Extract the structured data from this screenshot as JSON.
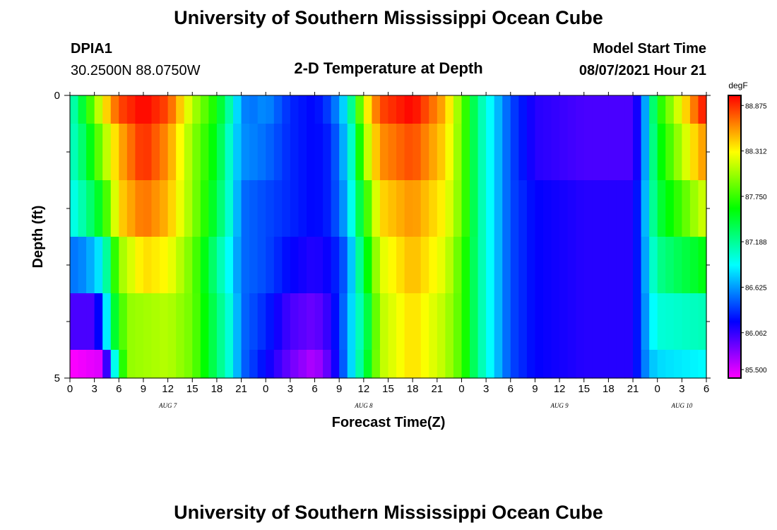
{
  "header": {
    "title": "University of Southern Mississippi Ocean Cube",
    "station_id": "DPIA1",
    "station_location": "30.2500N  88.0750W",
    "model_start_label": "Model Start Time",
    "model_start_value": "08/07/2021 Hour 21"
  },
  "footer": {
    "title": "University of Southern Mississippi Ocean Cube"
  },
  "chart_data": {
    "type": "heatmap",
    "title": "2-D Temperature at Depth",
    "xlabel": "Forecast Time(Z)",
    "ylabel": "Depth (ft)",
    "x_start_hour": 0,
    "x_end_hour": 78,
    "x_step_hours": 1,
    "x_tick_labels": [
      "0",
      "3",
      "6",
      "9",
      "12",
      "15",
      "18",
      "21",
      "0",
      "3",
      "6",
      "9",
      "12",
      "15",
      "18",
      "21",
      "0",
      "3",
      "6",
      "9",
      "12",
      "15",
      "18",
      "21",
      "0",
      "3",
      "6"
    ],
    "x_tick_hours": [
      0,
      3,
      6,
      9,
      12,
      15,
      18,
      21,
      24,
      27,
      30,
      33,
      36,
      39,
      42,
      45,
      48,
      51,
      54,
      57,
      60,
      63,
      66,
      69,
      72,
      75,
      78
    ],
    "date_labels": [
      {
        "label": "AUG 7",
        "hour": 12
      },
      {
        "label": "AUG 8",
        "hour": 36
      },
      {
        "label": "AUG 9",
        "hour": 60
      },
      {
        "label": "AUG 10",
        "hour": 75
      }
    ],
    "y_range": [
      0,
      5
    ],
    "y_tick_labels": [
      {
        "label": "0",
        "depth": 0
      },
      {
        "label": "5",
        "depth": 5
      }
    ],
    "y_minor_ticks": [
      1,
      2,
      3,
      4
    ],
    "depth_layers": [
      0.5,
      1.5,
      2.5,
      3.5,
      4.5
    ],
    "colorbar": {
      "unit": "degF",
      "min": 85.5,
      "max": 89.0,
      "tick_values": [
        85.5,
        86.062,
        86.625,
        87.188,
        87.75,
        88.312,
        88.875
      ],
      "tick_labels": [
        "85.500",
        "86.062",
        "86.625",
        "87.188",
        "87.750",
        "88.312",
        "88.875"
      ]
    },
    "keypoints": [
      [
        [
          0,
          87.0
        ],
        [
          2,
          87.6
        ],
        [
          4,
          88.3
        ],
        [
          6,
          88.8
        ],
        [
          9,
          89.0
        ],
        [
          12,
          88.8
        ],
        [
          15,
          88.1
        ],
        [
          18,
          87.6
        ],
        [
          20,
          87.0
        ],
        [
          21,
          86.6
        ],
        [
          22,
          86.5
        ],
        [
          24,
          86.6
        ],
        [
          27,
          86.3
        ],
        [
          30,
          86.2
        ],
        [
          32,
          86.4
        ],
        [
          34,
          86.9
        ],
        [
          35,
          87.5
        ],
        [
          36,
          88.2
        ],
        [
          38,
          88.8
        ],
        [
          42,
          89.0
        ],
        [
          46,
          88.5
        ],
        [
          48,
          87.9
        ],
        [
          50,
          87.2
        ],
        [
          52,
          86.8
        ],
        [
          54,
          86.4
        ],
        [
          57,
          86.1
        ],
        [
          63,
          86.0
        ],
        [
          69,
          86.0
        ],
        [
          70,
          86.3
        ],
        [
          71,
          87.0
        ],
        [
          72,
          87.6
        ],
        [
          75,
          88.3
        ],
        [
          77,
          88.8
        ],
        [
          78,
          89.0
        ]
      ],
      [
        [
          0,
          87.0
        ],
        [
          2,
          87.4
        ],
        [
          4,
          88.0
        ],
        [
          6,
          88.5
        ],
        [
          9,
          88.9
        ],
        [
          12,
          88.6
        ],
        [
          15,
          88.0
        ],
        [
          18,
          87.5
        ],
        [
          20,
          86.9
        ],
        [
          21,
          86.6
        ],
        [
          24,
          86.5
        ],
        [
          27,
          86.3
        ],
        [
          30,
          86.2
        ],
        [
          32,
          86.3
        ],
        [
          34,
          86.8
        ],
        [
          35,
          87.3
        ],
        [
          36,
          88.0
        ],
        [
          38,
          88.6
        ],
        [
          42,
          88.8
        ],
        [
          46,
          88.4
        ],
        [
          48,
          87.9
        ],
        [
          50,
          87.2
        ],
        [
          52,
          86.8
        ],
        [
          54,
          86.4
        ],
        [
          57,
          86.1
        ],
        [
          63,
          86.0
        ],
        [
          69,
          86.0
        ],
        [
          70,
          86.3
        ],
        [
          71,
          87.0
        ],
        [
          72,
          87.5
        ],
        [
          75,
          88.1
        ],
        [
          77,
          88.5
        ],
        [
          78,
          88.6
        ]
      ],
      [
        [
          0,
          86.9
        ],
        [
          2,
          87.2
        ],
        [
          4,
          87.6
        ],
        [
          6,
          88.4
        ],
        [
          9,
          88.7
        ],
        [
          12,
          88.5
        ],
        [
          15,
          88.0
        ],
        [
          18,
          87.4
        ],
        [
          20,
          86.9
        ],
        [
          21,
          86.5
        ],
        [
          24,
          86.4
        ],
        [
          27,
          86.3
        ],
        [
          30,
          86.2
        ],
        [
          32,
          86.3
        ],
        [
          34,
          86.7
        ],
        [
          35,
          87.2
        ],
        [
          36,
          87.6
        ],
        [
          38,
          88.4
        ],
        [
          42,
          88.6
        ],
        [
          46,
          88.3
        ],
        [
          48,
          87.9
        ],
        [
          50,
          87.2
        ],
        [
          52,
          86.8
        ],
        [
          54,
          86.4
        ],
        [
          57,
          86.2
        ],
        [
          63,
          86.1
        ],
        [
          69,
          86.1
        ],
        [
          70,
          86.4
        ],
        [
          71,
          87.0
        ],
        [
          72,
          87.4
        ],
        [
          75,
          87.8
        ],
        [
          77,
          88.1
        ],
        [
          78,
          88.2
        ]
      ],
      [
        [
          0,
          86.5
        ],
        [
          2,
          86.6
        ],
        [
          4,
          86.9
        ],
        [
          6,
          88.0
        ],
        [
          9,
          88.4
        ],
        [
          12,
          88.3
        ],
        [
          15,
          87.9
        ],
        [
          18,
          87.2
        ],
        [
          20,
          86.8
        ],
        [
          21,
          86.5
        ],
        [
          24,
          86.4
        ],
        [
          27,
          86.2
        ],
        [
          30,
          86.1
        ],
        [
          32,
          86.2
        ],
        [
          34,
          86.5
        ],
        [
          35,
          87.0
        ],
        [
          36,
          87.4
        ],
        [
          38,
          88.2
        ],
        [
          42,
          88.5
        ],
        [
          46,
          88.2
        ],
        [
          48,
          87.8
        ],
        [
          50,
          87.2
        ],
        [
          52,
          86.8
        ],
        [
          54,
          86.4
        ],
        [
          57,
          86.2
        ],
        [
          63,
          86.1
        ],
        [
          69,
          86.1
        ],
        [
          70,
          86.4
        ],
        [
          71,
          86.9
        ],
        [
          72,
          87.2
        ],
        [
          75,
          87.4
        ],
        [
          77,
          87.5
        ],
        [
          78,
          87.6
        ]
      ],
      [
        [
          0,
          86.0
        ],
        [
          3,
          86.0
        ],
        [
          4,
          86.4
        ],
        [
          5,
          87.3
        ],
        [
          7,
          88.0
        ],
        [
          12,
          88.1
        ],
        [
          15,
          87.9
        ],
        [
          18,
          87.3
        ],
        [
          20,
          86.9
        ],
        [
          21,
          86.5
        ],
        [
          24,
          86.3
        ],
        [
          27,
          86.0
        ],
        [
          30,
          85.9
        ],
        [
          32,
          86.1
        ],
        [
          34,
          86.6
        ],
        [
          35,
          87.0
        ],
        [
          36,
          87.2
        ],
        [
          38,
          88.1
        ],
        [
          42,
          88.4
        ],
        [
          46,
          88.1
        ],
        [
          48,
          87.8
        ],
        [
          50,
          87.2
        ],
        [
          52,
          86.8
        ],
        [
          54,
          86.4
        ],
        [
          57,
          86.2
        ],
        [
          63,
          86.1
        ],
        [
          69,
          86.1
        ],
        [
          70,
          86.4
        ],
        [
          71,
          86.8
        ],
        [
          72,
          87.0
        ],
        [
          78,
          87.1
        ]
      ],
      [
        [
          0,
          85.5
        ],
        [
          4,
          85.6
        ],
        [
          5,
          86.5
        ],
        [
          6,
          87.4
        ],
        [
          7,
          88.0
        ],
        [
          12,
          88.1
        ],
        [
          15,
          87.9
        ],
        [
          18,
          87.3
        ],
        [
          20,
          86.9
        ],
        [
          21,
          86.5
        ],
        [
          24,
          86.2
        ],
        [
          27,
          85.9
        ],
        [
          30,
          85.7
        ],
        [
          32,
          86.0
        ],
        [
          34,
          86.6
        ],
        [
          35,
          87.0
        ],
        [
          36,
          87.3
        ],
        [
          38,
          88.1
        ],
        [
          42,
          88.4
        ],
        [
          46,
          88.1
        ],
        [
          48,
          87.8
        ],
        [
          50,
          87.2
        ],
        [
          52,
          86.8
        ],
        [
          54,
          86.4
        ],
        [
          57,
          86.2
        ],
        [
          63,
          86.1
        ],
        [
          69,
          86.1
        ],
        [
          70,
          86.4
        ],
        [
          71,
          86.7
        ],
        [
          72,
          86.8
        ],
        [
          78,
          86.9
        ]
      ]
    ]
  }
}
